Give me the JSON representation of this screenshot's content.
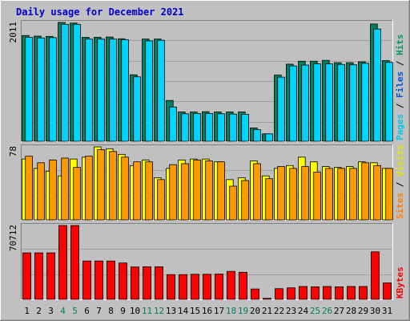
{
  "chart_data": {
    "type": "bar",
    "title": "Daily usage for December 2021",
    "categories": [
      "1",
      "2",
      "3",
      "4",
      "5",
      "6",
      "7",
      "8",
      "9",
      "10",
      "11",
      "12",
      "13",
      "14",
      "15",
      "16",
      "17",
      "18",
      "19",
      "20",
      "21",
      "22",
      "23",
      "24",
      "25",
      "26",
      "27",
      "28",
      "29",
      "30",
      "31"
    ],
    "weekend_days": [
      "4",
      "5",
      "11",
      "12",
      "18",
      "19",
      "25",
      "26"
    ],
    "panels": [
      {
        "id": "hits-files-pages",
        "ymax_label": "2011",
        "ymax": 2011,
        "side_labels": [
          "Pages",
          "Files",
          "Hits"
        ],
        "side_label_colors": [
          "#00c8e6",
          "#0055d4",
          "#009966"
        ],
        "series": [
          {
            "name": "Hits",
            "color": "#00805f",
            "values": [
              1790,
              1780,
              1775,
              2011,
              2000,
              1760,
              1760,
              1765,
              1735,
              1125,
              1730,
              1730,
              690,
              495,
              495,
              500,
              495,
              495,
              495,
              225,
              125,
              1120,
              1305,
              1355,
              1355,
              1370,
              1330,
              1330,
              1345,
              1985,
              1365
            ]
          },
          {
            "name": "Files",
            "color": "#00d4ff",
            "values": [
              1760,
              1750,
              1755,
              1980,
              1980,
              1730,
              1730,
              1730,
              1720,
              1090,
              1700,
              1710,
              580,
              465,
              470,
              470,
              465,
              460,
              455,
              195,
              125,
              1085,
              1275,
              1290,
              1310,
              1310,
              1300,
              1295,
              1320,
              1900,
              1335
            ]
          }
        ]
      },
      {
        "id": "visits-sites",
        "ymax_label": "78",
        "ymax": 78,
        "side_labels": [
          "Sites",
          "Visits"
        ],
        "side_label_colors": [
          "#ff8000",
          "#e6e600"
        ],
        "series": [
          {
            "name": "Visits",
            "color": "#ffff00",
            "values": [
              65,
              55,
              52,
              47,
              65,
              67,
              78,
              76,
              70,
              58,
              64,
              45,
              55,
              64,
              65,
              65,
              62,
              43,
              45,
              63,
              47,
              55,
              58,
              67,
              62,
              57,
              56,
              57,
              62,
              61,
              55
            ]
          },
          {
            "name": "Sites",
            "color": "#ff9900",
            "values": [
              68,
              61,
              64,
              66,
              56,
              68,
              75,
              73,
              67,
              62,
              62,
              43,
              59,
              60,
              64,
              63,
              62,
              36,
              42,
              60,
              44,
              57,
              55,
              57,
              51,
              55,
              55,
              55,
              61,
              58,
              55
            ]
          }
        ]
      },
      {
        "id": "kbytes",
        "ymax_label": "70712",
        "ymax": 70712,
        "side_labels": [
          "KBytes"
        ],
        "side_label_colors": [
          "#ff0000"
        ],
        "series": [
          {
            "name": "KBytes",
            "color": "#ff0000",
            "values": [
              44500,
              44500,
              44500,
              70712,
              70712,
              36700,
              36700,
              36700,
              34800,
              31000,
              31200,
              31200,
              23700,
              23700,
              24000,
              24000,
              24200,
              26800,
              25900,
              9900,
              980,
              10200,
              11000,
              12300,
              12000,
              12300,
              12000,
              12300,
              12300,
              45500,
              15700
            ]
          }
        ]
      }
    ]
  }
}
